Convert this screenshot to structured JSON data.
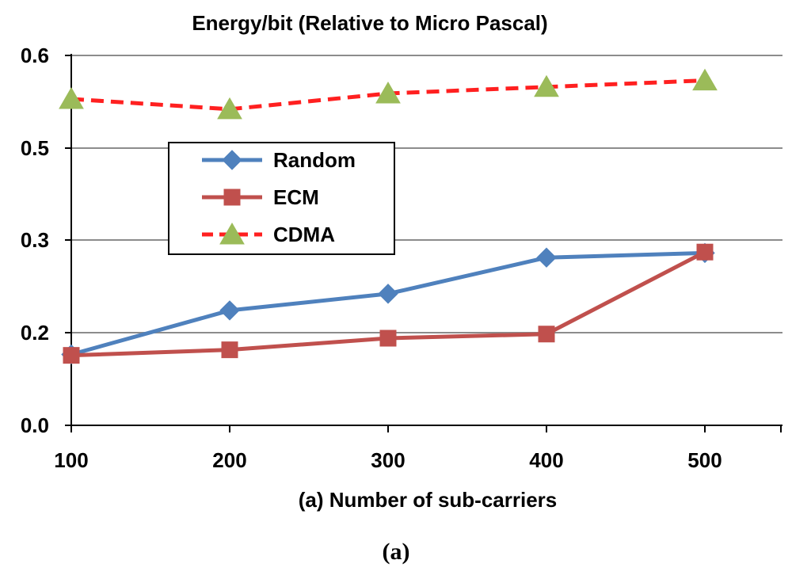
{
  "chart_data": {
    "type": "line",
    "title": "Energy/bit (Relative to Micro Pascal)",
    "xlabel": "(a) Number of  sub-carriers",
    "ylabel": "",
    "caption": "(a)",
    "categories": [
      "100",
      "200",
      "300",
      "400",
      "500"
    ],
    "y_ticks": [
      {
        "label": "0.0",
        "value": 0.0
      },
      {
        "label": "0.2",
        "value": 0.2
      },
      {
        "label": "0.3",
        "value": 0.3
      },
      {
        "label": "0.5",
        "value": 0.5
      },
      {
        "label": "0.6",
        "value": 0.6
      }
    ],
    "series": [
      {
        "name": "Random",
        "color": "#4F81BD",
        "marker": "diamond",
        "dash": false,
        "values": [
          0.153,
          0.224,
          0.242,
          0.281,
          0.286
        ]
      },
      {
        "name": "ECM",
        "color": "#C0504D",
        "marker": "square",
        "dash": false,
        "values": [
          0.151,
          0.163,
          0.188,
          0.197,
          0.287
        ]
      },
      {
        "name": "CDMA",
        "color": "#FF2020",
        "marker": "triangle",
        "marker_color": "#9BBB59",
        "dash": true,
        "values": [
          0.553,
          0.542,
          0.559,
          0.566,
          0.573
        ]
      }
    ],
    "grid": true,
    "legend": "upper-left-inside"
  }
}
